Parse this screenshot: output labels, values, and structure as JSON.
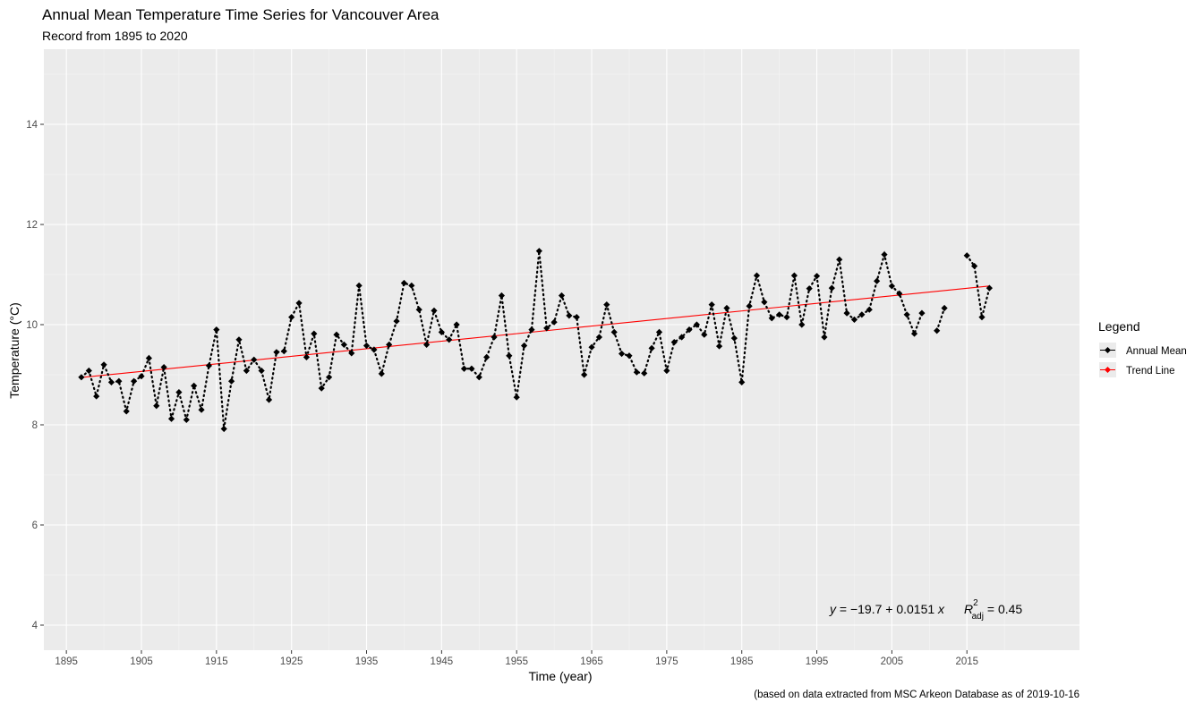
{
  "chart_data": {
    "type": "line",
    "title": "Annual Mean Temperature Time Series for Vancouver Area",
    "subtitle": "Record from 1895 to 2020",
    "xlabel": "Time (year)",
    "ylabel": "Temperature (°C)",
    "caption": "(based on data extracted from MSC Arkeon Database as of  2019-10-16",
    "xlim": [
      1892,
      2030
    ],
    "ylim": [
      3.5,
      15.5
    ],
    "x_ticks": [
      1895,
      1905,
      1915,
      1925,
      1935,
      1945,
      1955,
      1965,
      1975,
      1985,
      1995,
      2005,
      2015
    ],
    "y_ticks": [
      4,
      6,
      8,
      10,
      12,
      14
    ],
    "grid": true,
    "background": "#ebebeb",
    "grid_color": "#ffffff",
    "legend": {
      "title": "Legend",
      "placement": "right",
      "entries": [
        {
          "label": "Annual Mean",
          "color": "#000000"
        },
        {
          "label": "Trend Line",
          "color": "#ff0000"
        }
      ]
    },
    "annotation": {
      "y_equals": "y = −19.7 + 0.0151 x",
      "r_symbol": "R",
      "r_sup": "2",
      "r_sub": "adj",
      "r_value": "= 0.45"
    },
    "series": [
      {
        "name": "Annual Mean",
        "color": "#000000",
        "style": "dotted",
        "marker": "diamond",
        "points": [
          [
            1897,
            8.95
          ],
          [
            1898,
            9.08
          ],
          [
            1899,
            8.57
          ],
          [
            1900,
            9.2
          ],
          [
            1901,
            8.85
          ],
          [
            1902,
            8.87
          ],
          [
            1903,
            8.27
          ],
          [
            1904,
            8.87
          ],
          [
            1905,
            8.97
          ],
          [
            1906,
            9.33
          ],
          [
            1907,
            8.38
          ],
          [
            1908,
            9.15
          ],
          [
            1909,
            8.12
          ],
          [
            1910,
            8.65
          ],
          [
            1911,
            8.1
          ],
          [
            1912,
            8.78
          ],
          [
            1913,
            8.3
          ],
          [
            1914,
            9.18
          ],
          [
            1915,
            9.9
          ],
          [
            1916,
            7.92
          ],
          [
            1917,
            8.87
          ],
          [
            1918,
            9.7
          ],
          [
            1919,
            9.08
          ],
          [
            1920,
            9.3
          ],
          [
            1921,
            9.08
          ],
          [
            1922,
            8.5
          ],
          [
            1923,
            9.45
          ],
          [
            1924,
            9.47
          ],
          [
            1925,
            10.15
          ],
          [
            1926,
            10.43
          ],
          [
            1927,
            9.35
          ],
          [
            1928,
            9.82
          ],
          [
            1929,
            8.73
          ],
          [
            1930,
            8.95
          ],
          [
            1931,
            9.8
          ],
          [
            1932,
            9.6
          ],
          [
            1933,
            9.43
          ],
          [
            1934,
            10.78
          ],
          [
            1935,
            9.58
          ],
          [
            1936,
            9.5
          ],
          [
            1937,
            9.02
          ],
          [
            1938,
            9.6
          ],
          [
            1939,
            10.07
          ],
          [
            1940,
            10.83
          ],
          [
            1941,
            10.78
          ],
          [
            1942,
            10.3
          ],
          [
            1943,
            9.6
          ],
          [
            1944,
            10.28
          ],
          [
            1945,
            9.85
          ],
          [
            1946,
            9.7
          ],
          [
            1947,
            10.0
          ],
          [
            1948,
            9.12
          ],
          [
            1949,
            9.12
          ],
          [
            1950,
            8.95
          ],
          [
            1951,
            9.35
          ],
          [
            1952,
            9.75
          ],
          [
            1953,
            10.58
          ],
          [
            1954,
            9.38
          ],
          [
            1955,
            8.55
          ],
          [
            1956,
            9.58
          ],
          [
            1957,
            9.9
          ],
          [
            1958,
            11.47
          ],
          [
            1959,
            9.93
          ],
          [
            1960,
            10.05
          ],
          [
            1961,
            10.58
          ],
          [
            1962,
            10.18
          ],
          [
            1963,
            10.15
          ],
          [
            1964,
            9.0
          ],
          [
            1965,
            9.55
          ],
          [
            1966,
            9.75
          ],
          [
            1967,
            10.4
          ],
          [
            1968,
            9.85
          ],
          [
            1969,
            9.42
          ],
          [
            1970,
            9.38
          ],
          [
            1971,
            9.05
          ],
          [
            1972,
            9.03
          ],
          [
            1973,
            9.53
          ],
          [
            1974,
            9.85
          ],
          [
            1975,
            9.08
          ],
          [
            1976,
            9.65
          ],
          [
            1977,
            9.75
          ],
          [
            1978,
            9.9
          ],
          [
            1979,
            10.0
          ],
          [
            1980,
            9.8
          ],
          [
            1981,
            10.4
          ],
          [
            1982,
            9.57
          ],
          [
            1983,
            10.33
          ],
          [
            1984,
            9.73
          ],
          [
            1985,
            8.85
          ],
          [
            1986,
            10.37
          ],
          [
            1987,
            10.98
          ],
          [
            1988,
            10.45
          ],
          [
            1989,
            10.13
          ],
          [
            1990,
            10.2
          ],
          [
            1991,
            10.15
          ],
          [
            1992,
            10.98
          ],
          [
            1993,
            10.0
          ],
          [
            1994,
            10.72
          ],
          [
            1995,
            10.97
          ],
          [
            1996,
            9.75
          ],
          [
            1997,
            10.73
          ],
          [
            1998,
            11.3
          ],
          [
            1999,
            10.23
          ],
          [
            2000,
            10.1
          ],
          [
            2001,
            10.2
          ],
          [
            2002,
            10.3
          ],
          [
            2003,
            10.87
          ],
          [
            2004,
            11.4
          ],
          [
            2005,
            10.77
          ],
          [
            2006,
            10.62
          ],
          [
            2007,
            10.2
          ],
          [
            2008,
            9.82
          ],
          [
            2009,
            10.23
          ],
          null,
          [
            2011,
            9.88
          ],
          [
            2012,
            10.33
          ],
          null,
          [
            2015,
            11.38
          ],
          [
            2016,
            11.17
          ],
          [
            2017,
            10.15
          ],
          [
            2018,
            10.73
          ]
        ]
      },
      {
        "name": "Trend Line",
        "color": "#ff0000",
        "style": "solid",
        "intercept": -19.7,
        "slope": 0.0151,
        "x_range": [
          1897,
          2018
        ]
      }
    ]
  }
}
